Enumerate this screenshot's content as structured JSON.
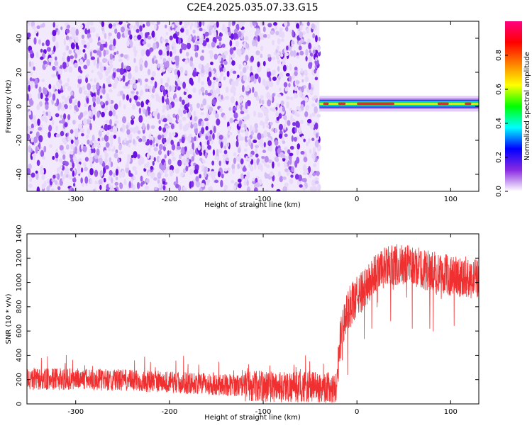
{
  "title": "C2E4.2025.035.07.33.G15",
  "chart_data": [
    {
      "type": "heatmap",
      "xlabel": "Height of straight line (km)",
      "ylabel": "Frequency (Hz)",
      "xlim": [
        -352,
        130
      ],
      "ylim": [
        -50,
        50
      ],
      "x_ticks": [
        "-300",
        "-200",
        "-100",
        "0",
        "100"
      ],
      "y_ticks": [
        "-40",
        "-20",
        "0",
        "20",
        "40"
      ],
      "noise_region_x": [
        -352,
        -40
      ],
      "signal_region_x": [
        -40,
        130
      ],
      "signal_track_y": [
        0,
        3
      ],
      "colorbar": {
        "label": "Normalized spectral amplitude",
        "range": [
          0,
          1
        ],
        "ticks": [
          "0.0",
          "0.2",
          "0.4",
          "0.6",
          "0.8"
        ],
        "colors": [
          "#ffffff",
          "#8a2be2",
          "#0000ff",
          "#00ffff",
          "#00ff00",
          "#ffff00",
          "#ff8000",
          "#ff0000",
          "#ff0080"
        ]
      }
    },
    {
      "type": "line",
      "xlabel": "Height of straight line (km)",
      "ylabel": "SNR (10 * v/v)",
      "xlim": [
        -352,
        130
      ],
      "ylim": [
        0,
        1400
      ],
      "x_ticks": [
        "-300",
        "-200",
        "-100",
        "0",
        "100"
      ],
      "y_ticks": [
        "0",
        "200",
        "400",
        "600",
        "800",
        "1000",
        "1200",
        "1400"
      ],
      "color": "#f03030",
      "x": [
        -352,
        -300,
        -250,
        -200,
        -150,
        -100,
        -50,
        -22,
        -18,
        -10,
        0,
        10,
        20,
        30,
        40,
        50,
        60,
        70,
        80,
        90,
        100,
        110,
        120,
        130
      ],
      "y": [
        200,
        205,
        195,
        180,
        160,
        145,
        140,
        135,
        520,
        780,
        880,
        960,
        1080,
        1120,
        1150,
        1140,
        1130,
        1110,
        1090,
        1070,
        1060,
        1050,
        1040,
        1030
      ]
    }
  ]
}
